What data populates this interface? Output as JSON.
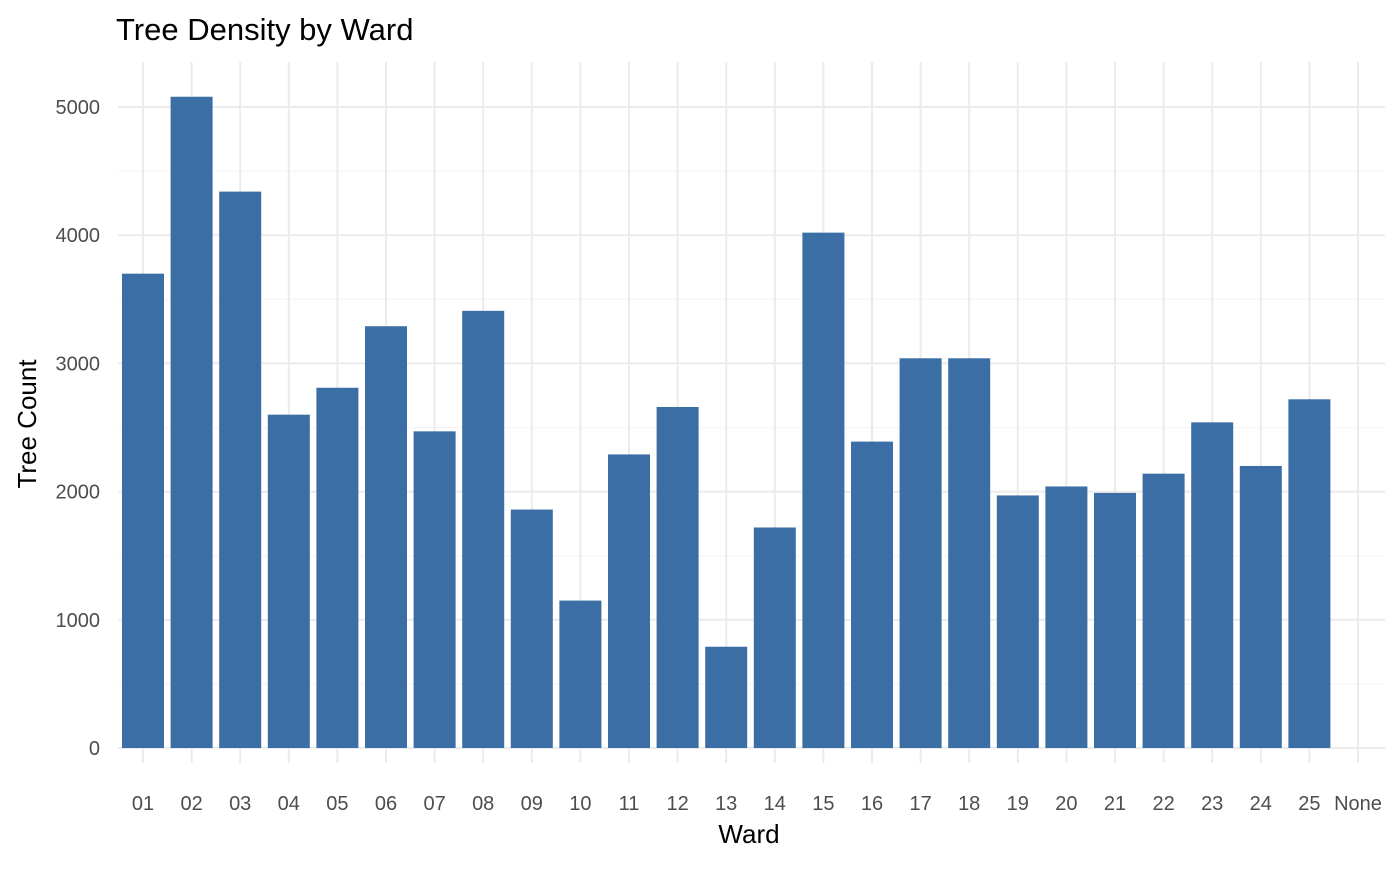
{
  "chart_data": {
    "type": "bar",
    "title": "Tree Density by Ward",
    "xlabel": "Ward",
    "ylabel": "Tree Count",
    "categories": [
      "01",
      "02",
      "03",
      "04",
      "05",
      "06",
      "07",
      "08",
      "09",
      "10",
      "11",
      "12",
      "13",
      "14",
      "15",
      "16",
      "17",
      "18",
      "19",
      "20",
      "21",
      "22",
      "23",
      "24",
      "25",
      "None"
    ],
    "values": [
      3700,
      5080,
      4340,
      2600,
      2810,
      3290,
      2470,
      3410,
      1860,
      1150,
      2290,
      2660,
      790,
      1720,
      4020,
      2390,
      3040,
      3040,
      1970,
      2040,
      1990,
      2140,
      2540,
      2200,
      2720,
      0
    ],
    "ylim": [
      0,
      5330
    ],
    "yticks": [
      "0",
      "1000",
      "2000",
      "3000",
      "4000",
      "5000"
    ],
    "grid": true,
    "legend": "none",
    "colors": {
      "bar": "#3a6ea5",
      "grid_major": "#ebebeb",
      "grid_minor": "#f5f5f5",
      "background": "#ffffff"
    }
  }
}
